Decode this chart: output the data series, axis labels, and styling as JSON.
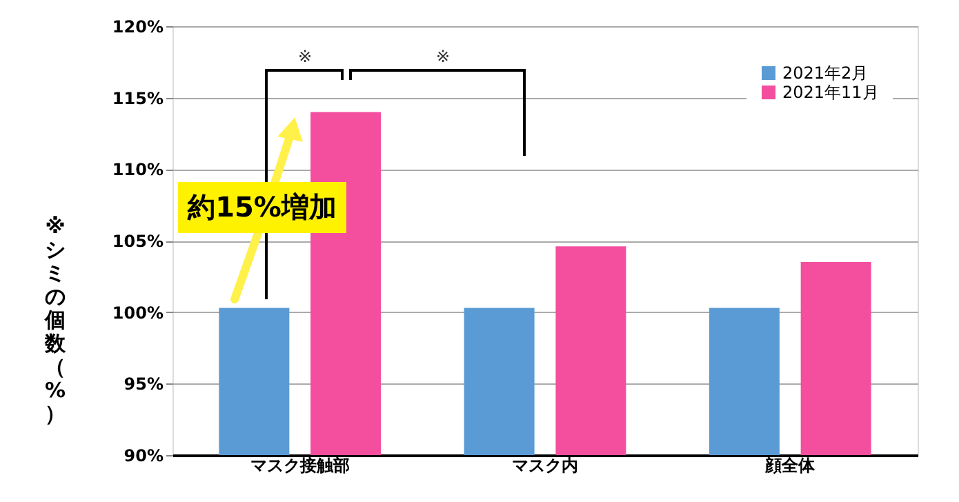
{
  "chart_data": {
    "type": "bar",
    "ylabel": "※シミの個数（%）",
    "categories": [
      "マスク接触部",
      "マスク内",
      "顔全体"
    ],
    "series": [
      {
        "name": "2021年2月",
        "color": "#5b9bd5",
        "values": [
          100.3,
          100.3,
          100.3
        ]
      },
      {
        "name": "2021年11月",
        "color": "#f44e9f",
        "values": [
          114.0,
          104.6,
          103.5
        ]
      }
    ],
    "ylim": [
      90,
      120
    ],
    "yticks": [
      {
        "value": 90,
        "label": "90%"
      },
      {
        "value": 95,
        "label": "95%"
      },
      {
        "value": 100,
        "label": "100%"
      },
      {
        "value": 105,
        "label": "105%"
      },
      {
        "value": 110,
        "label": "110%"
      },
      {
        "value": 115,
        "label": "115%"
      },
      {
        "value": 120,
        "label": "120%"
      }
    ],
    "annotations": [
      "※",
      "※",
      "約15%増加"
    ],
    "grid": "y",
    "legend": "top right"
  }
}
